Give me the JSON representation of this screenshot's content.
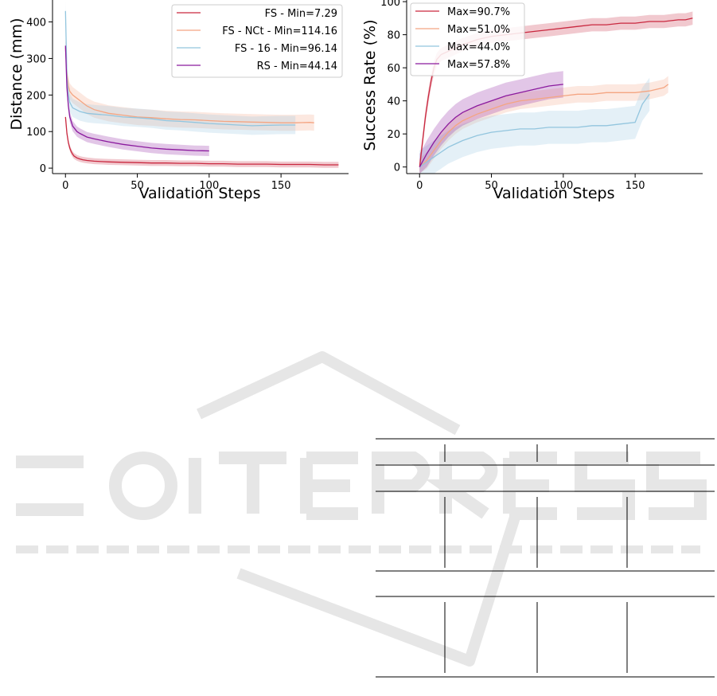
{
  "chart_data": [
    {
      "type": "line",
      "title": "",
      "xlabel": "Validation Steps",
      "ylabel": "Distance (mm)",
      "xlim": [
        -9,
        197
      ],
      "ylim": [
        -15,
        460
      ],
      "xticks": [
        0,
        50,
        100,
        150
      ],
      "yticks": [
        0,
        100,
        200,
        300,
        400
      ],
      "grid": false,
      "legend": "top-right",
      "series": [
        {
          "name": "FS - Min=7.29",
          "color": "#c9283f",
          "band": 8,
          "x": [
            0,
            1,
            2,
            3,
            4,
            5,
            6,
            8,
            10,
            12,
            15,
            20,
            25,
            30,
            40,
            50,
            60,
            70,
            80,
            90,
            100,
            110,
            120,
            130,
            140,
            150,
            160,
            170,
            180,
            190
          ],
          "y": [
            140,
            95,
            70,
            55,
            45,
            38,
            33,
            28,
            25,
            23,
            21,
            19,
            18,
            17,
            16,
            15,
            14,
            14,
            13,
            13,
            12,
            12,
            11,
            11,
            11,
            10,
            10,
            10,
            9,
            9
          ]
        },
        {
          "name": "FS - NCt - Min=114.16",
          "color": "#f4a582",
          "band": 22,
          "x": [
            0,
            1,
            2,
            3,
            5,
            10,
            15,
            20,
            30,
            40,
            50,
            60,
            70,
            80,
            90,
            100,
            110,
            120,
            130,
            140,
            150,
            160,
            170,
            173
          ],
          "y": [
            330,
            260,
            225,
            210,
            200,
            185,
            170,
            160,
            150,
            145,
            140,
            138,
            135,
            133,
            132,
            130,
            128,
            127,
            126,
            125,
            124,
            124,
            125,
            124
          ]
        },
        {
          "name": "FS - 16 - Min=96.14",
          "color": "#92c5de",
          "band": 25,
          "x": [
            0,
            1,
            2,
            3,
            5,
            10,
            15,
            20,
            30,
            40,
            50,
            60,
            70,
            80,
            90,
            100,
            110,
            120,
            130,
            140,
            150,
            160
          ],
          "y": [
            430,
            250,
            200,
            180,
            165,
            155,
            150,
            148,
            145,
            140,
            138,
            135,
            130,
            128,
            125,
            122,
            120,
            118,
            116,
            117,
            118,
            118
          ]
        },
        {
          "name": "RS - Min=44.14",
          "color": "#8b1a9e",
          "band": 14,
          "x": [
            0,
            1,
            2,
            3,
            5,
            8,
            10,
            15,
            20,
            30,
            40,
            50,
            60,
            70,
            80,
            90,
            100
          ],
          "y": [
            335,
            220,
            170,
            140,
            115,
            100,
            95,
            85,
            80,
            72,
            65,
            60,
            55,
            52,
            50,
            48,
            47
          ]
        }
      ]
    },
    {
      "type": "line",
      "title": "",
      "xlabel": "Validation Steps",
      "ylabel": "Success Rate (%)",
      "xlim": [
        -9,
        197
      ],
      "ylim": [
        -4,
        101
      ],
      "xticks": [
        0,
        50,
        100,
        150
      ],
      "yticks": [
        0,
        20,
        40,
        60,
        80,
        100
      ],
      "grid": false,
      "legend": "top-left",
      "series": [
        {
          "name": "Max=90.7%",
          "color": "#c9283f",
          "band": 4,
          "x": [
            0,
            2,
            4,
            6,
            8,
            10,
            12,
            15,
            20,
            25,
            30,
            40,
            50,
            60,
            70,
            80,
            90,
            100,
            110,
            120,
            130,
            140,
            150,
            160,
            170,
            180,
            185,
            190
          ],
          "y": [
            0,
            15,
            30,
            42,
            52,
            60,
            65,
            68,
            70,
            72,
            74,
            77,
            79,
            80,
            81,
            82,
            83,
            84,
            85,
            86,
            86,
            87,
            87,
            88,
            88,
            89,
            89,
            90
          ]
        },
        {
          "name": "Max=51.0%",
          "color": "#f4a582",
          "band": 5,
          "x": [
            0,
            5,
            10,
            15,
            20,
            25,
            30,
            40,
            50,
            60,
            70,
            80,
            90,
            100,
            110,
            120,
            130,
            140,
            150,
            160,
            170,
            173
          ],
          "y": [
            0,
            4,
            10,
            16,
            21,
            25,
            28,
            32,
            35,
            38,
            40,
            41,
            42,
            43,
            44,
            44,
            45,
            45,
            45,
            46,
            48,
            50
          ]
        },
        {
          "name": "Max=44.0%",
          "color": "#92c5de",
          "band": 10,
          "x": [
            0,
            5,
            10,
            15,
            20,
            25,
            30,
            40,
            50,
            60,
            70,
            80,
            90,
            100,
            110,
            120,
            130,
            140,
            150,
            155,
            160
          ],
          "y": [
            0,
            3,
            6,
            9,
            12,
            14,
            16,
            19,
            21,
            22,
            23,
            23,
            24,
            24,
            24,
            25,
            25,
            26,
            27,
            38,
            44
          ]
        },
        {
          "name": "Max=57.8%",
          "color": "#8b1a9e",
          "band": 8,
          "x": [
            0,
            5,
            10,
            15,
            20,
            25,
            30,
            40,
            50,
            60,
            70,
            80,
            90,
            100
          ],
          "y": [
            0,
            8,
            15,
            21,
            26,
            30,
            33,
            37,
            40,
            43,
            45,
            47,
            49,
            50
          ]
        }
      ]
    }
  ]
}
